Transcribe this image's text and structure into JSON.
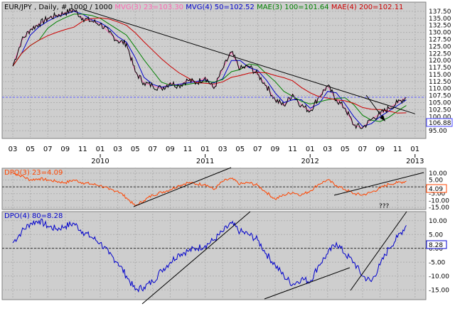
{
  "panel_titles": {
    "main": [
      {
        "text": "EUR/JPY , Daily, # 1000 / 1000",
        "color": "#000000"
      },
      {
        "text": "MVG(3) 23=103.30",
        "color": "#ff69b4"
      },
      {
        "text": "MVG(4) 50=102.52",
        "color": "#0000cc"
      },
      {
        "text": "MAE(3) 100=101.64",
        "color": "#008000"
      },
      {
        "text": "MAE(4) 200=102.11",
        "color": "#cc0000"
      }
    ],
    "dpo3": [
      {
        "text": "DPO(3) 23=4.09",
        "color": "#ff4500"
      }
    ],
    "dpo4": [
      {
        "text": "DPO(4) 80=8.28",
        "color": "#0000cc"
      }
    ]
  },
  "colors": {
    "plot_bg": "#cecece",
    "price": "#000000",
    "mvg23": "#ff69b4",
    "mvg50": "#0000cc",
    "mae100": "#008000",
    "mae200": "#cc0000",
    "dpo3": "#ff4500",
    "dpo4": "#0000cc",
    "trendline": "#000000",
    "current_level": "#6060ff"
  },
  "chart_data": [
    {
      "type": "line",
      "panel": "price",
      "instrument": "EUR/JPY",
      "timeframe": "Daily",
      "month_ticks": [
        "03",
        "05",
        "07",
        "09",
        "11",
        "01",
        "03",
        "05",
        "07",
        "09",
        "11",
        "01",
        "03",
        "05",
        "07",
        "09",
        "11",
        "01",
        "03",
        "05",
        "07",
        "09",
        "11",
        "01"
      ],
      "year_labels": [
        "2010",
        "2011",
        "2012",
        "2013"
      ],
      "y_ticks": [
        "137.50",
        "135.00",
        "132.50",
        "130.00",
        "127.50",
        "125.00",
        "122.50",
        "120.00",
        "117.50",
        "115.00",
        "112.50",
        "110.00",
        "107.50",
        "105.00",
        "102.50",
        "100.00",
        "97.50",
        "95.00"
      ],
      "ylim": [
        93.5,
        139.5
      ],
      "x": [
        "2009-03",
        "2009-04",
        "2009-05",
        "2009-06",
        "2009-07",
        "2009-08",
        "2009-09",
        "2009-10",
        "2009-11",
        "2009-12",
        "2010-01",
        "2010-02",
        "2010-03",
        "2010-04",
        "2010-05",
        "2010-06",
        "2010-07",
        "2010-08",
        "2010-09",
        "2010-10",
        "2010-11",
        "2010-12",
        "2011-01",
        "2011-02",
        "2011-03",
        "2011-04",
        "2011-05",
        "2011-06",
        "2011-07",
        "2011-08",
        "2011-09",
        "2011-10",
        "2011-11",
        "2011-12",
        "2012-01",
        "2012-02",
        "2012-03",
        "2012-04",
        "2012-05",
        "2012-06",
        "2012-07",
        "2012-08",
        "2012-09",
        "2012-10",
        "2012-11",
        "2012-12"
      ],
      "series": [
        {
          "values": [
            118,
            127,
            131,
            133,
            135,
            136,
            137,
            138,
            135,
            134,
            133,
            130,
            127,
            126,
            116,
            112,
            111,
            110,
            112,
            111,
            113,
            112,
            114,
            110,
            117,
            123,
            117,
            118,
            115,
            111,
            106,
            104,
            108,
            104,
            102,
            107,
            111,
            106,
            103,
            97,
            96,
            99,
            101,
            103,
            105,
            106.9
          ]
        }
      ],
      "current_value": "106.88",
      "trendline": {
        "x": [
          "2009-11",
          "2013-01"
        ],
        "y": [
          138.2,
          101.0
        ]
      }
    },
    {
      "type": "line",
      "panel": "dpo3",
      "y_ticks": [
        "10.00",
        "5.00",
        "0.00",
        "-5.00",
        "-10.00",
        "-15.00"
      ],
      "ylim": [
        -15,
        12
      ],
      "current_value": "4.09",
      "annotation": "???",
      "x": [
        "2009-03",
        "2009-04",
        "2009-05",
        "2009-06",
        "2009-07",
        "2009-08",
        "2009-09",
        "2009-10",
        "2009-11",
        "2009-12",
        "2010-01",
        "2010-02",
        "2010-03",
        "2010-04",
        "2010-05",
        "2010-06",
        "2010-07",
        "2010-08",
        "2010-09",
        "2010-10",
        "2010-11",
        "2010-12",
        "2011-01",
        "2011-02",
        "2011-03",
        "2011-04",
        "2011-05",
        "2011-06",
        "2011-07",
        "2011-08",
        "2011-09",
        "2011-10",
        "2011-11",
        "2011-12",
        "2012-01",
        "2012-02",
        "2012-03",
        "2012-04",
        "2012-05",
        "2012-06",
        "2012-07",
        "2012-08",
        "2012-09",
        "2012-10",
        "2012-11",
        "2012-12"
      ],
      "series": [
        {
          "name": "DPO(3) 23",
          "values": [
            10,
            8,
            5,
            6,
            5,
            4,
            3,
            5,
            3,
            2,
            1,
            -2,
            -3,
            -8,
            -14,
            -10,
            -6,
            -4,
            -2,
            1,
            3,
            2,
            2,
            -2,
            4,
            6,
            2,
            3,
            1,
            -4,
            -9,
            -6,
            -4,
            -6,
            -3,
            2,
            5,
            1,
            -2,
            -5,
            -6,
            -4,
            -1,
            2,
            3,
            4.1
          ]
        }
      ]
    },
    {
      "type": "line",
      "panel": "dpo4",
      "y_ticks": [
        "10.00",
        "5.00",
        "0.00",
        "-5.00",
        "-10.00",
        "-15.00"
      ],
      "ylim": [
        -17.5,
        12.5
      ],
      "current_value": "8.28",
      "x": [
        "2009-03",
        "2009-04",
        "2009-05",
        "2009-06",
        "2009-07",
        "2009-08",
        "2009-09",
        "2009-10",
        "2009-11",
        "2009-12",
        "2010-01",
        "2010-02",
        "2010-03",
        "2010-04",
        "2010-05",
        "2010-06",
        "2010-07",
        "2010-08",
        "2010-09",
        "2010-10",
        "2010-11",
        "2010-12",
        "2011-01",
        "2011-02",
        "2011-03",
        "2011-04",
        "2011-05",
        "2011-06",
        "2011-07",
        "2011-08",
        "2011-09",
        "2011-10",
        "2011-11",
        "2011-12",
        "2012-01",
        "2012-02",
        "2012-03",
        "2012-04",
        "2012-05",
        "2012-06",
        "2012-07",
        "2012-08",
        "2012-09",
        "2012-10",
        "2012-11",
        "2012-12"
      ],
      "series": [
        {
          "name": "DPO(4) 80",
          "values": [
            2,
            6,
            9,
            10,
            8,
            7,
            8,
            9,
            6,
            4,
            2,
            -2,
            -5,
            -10,
            -15,
            -14,
            -12,
            -8,
            -5,
            -2,
            -1,
            0,
            1,
            3,
            6,
            9,
            6,
            5,
            3,
            -2,
            -6,
            -10,
            -13,
            -11,
            -12,
            -6,
            -2,
            2,
            -2,
            -5,
            -10,
            -12,
            -6,
            0,
            4,
            8.3
          ]
        }
      ]
    }
  ]
}
